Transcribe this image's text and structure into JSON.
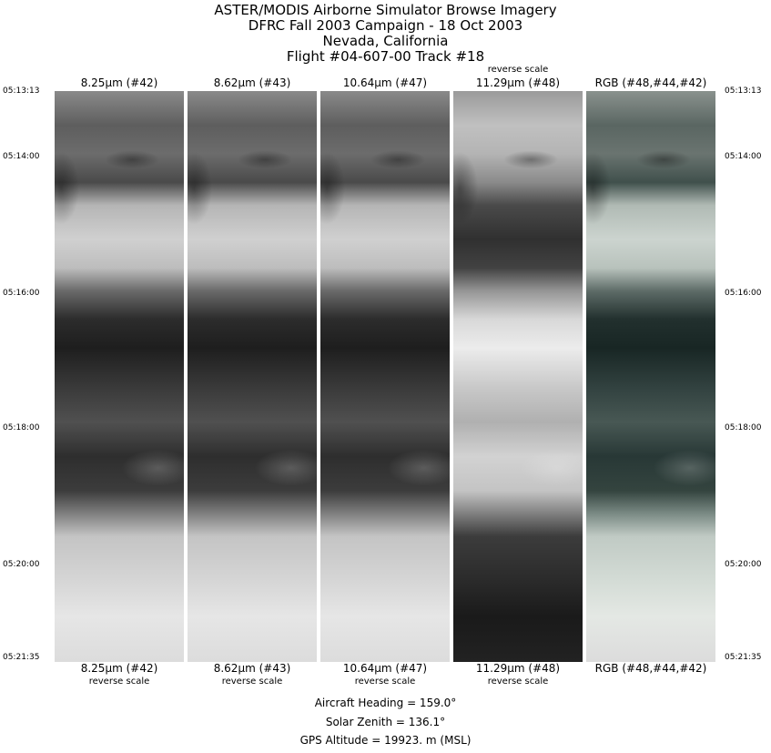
{
  "title": [
    "ASTER/MODIS Airborne Simulator Browse Imagery",
    "DFRC Fall 2003 Campaign - 18 Oct 2003",
    "Nevada, California",
    "Flight #04-607-00 Track #18"
  ],
  "panels": [
    {
      "label": "8.25µm (#42)",
      "top_note": "",
      "bottom_note": "reverse scale",
      "style": "gray"
    },
    {
      "label": "8.62µm (#43)",
      "top_note": "",
      "bottom_note": "reverse scale",
      "style": "gray"
    },
    {
      "label": "10.64µm (#47)",
      "top_note": "",
      "bottom_note": "reverse scale",
      "style": "gray"
    },
    {
      "label": "11.29µm (#48)",
      "top_note": "reverse scale",
      "bottom_note": "reverse scale",
      "style": "inverted"
    },
    {
      "label": "RGB (#48,#44,#42)",
      "top_note": "",
      "bottom_note": "",
      "style": "color"
    }
  ],
  "times": [
    "05:13:13",
    "05:14:00",
    "05:16:00",
    "05:18:00",
    "05:20:00",
    "05:21:35"
  ],
  "footer": {
    "heading": "Aircraft Heading =  159.0°",
    "zenith": "Solar Zenith =  136.1°",
    "altitude": "GPS Altitude =  19923. m (MSL)"
  }
}
